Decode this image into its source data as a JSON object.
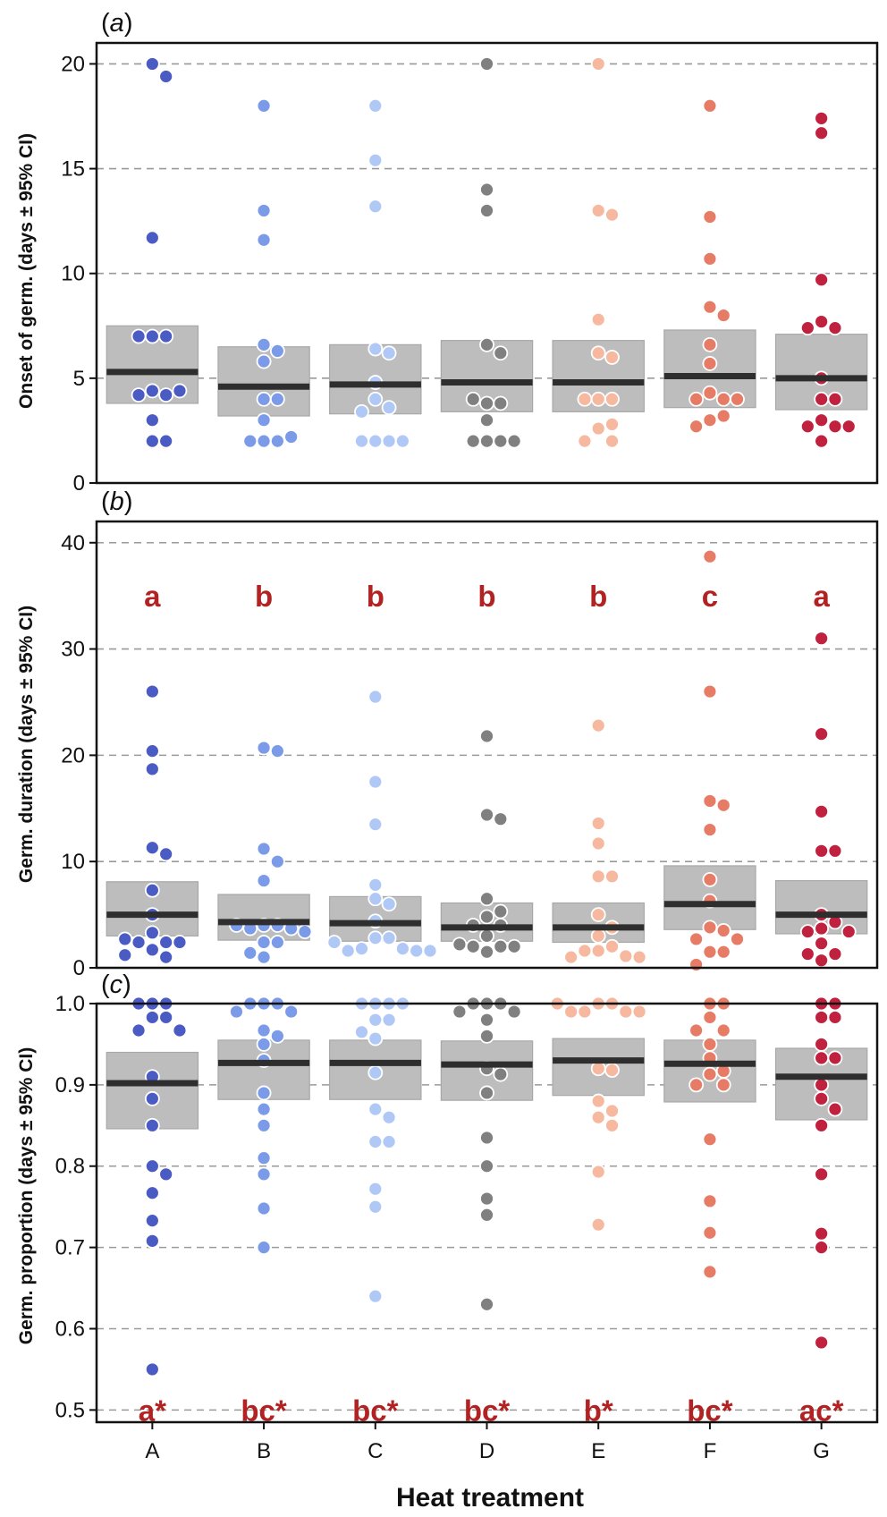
{
  "figure": {
    "x_title": "Heat treatment",
    "categories": [
      "A",
      "B",
      "C",
      "D",
      "E",
      "F",
      "G"
    ],
    "colors": {
      "A": "#4a5bc4",
      "B": "#7b9be8",
      "C": "#b0c8f6",
      "D": "#808080",
      "E": "#f6b9a0",
      "F": "#e77c66",
      "G": "#c0213e",
      "letters": "#b22222",
      "ci": "#bdbdbd",
      "mean": "#2e2e2e"
    }
  },
  "chart_data": [
    {
      "type": "scatter",
      "panel": "(a)",
      "panel_prefix": "(",
      "panel_letter": "a",
      "panel_suffix": ")",
      "ylabel": "Onset of germ. (days ± 95% CI)",
      "ylim": [
        0,
        21
      ],
      "yticks": [
        0,
        5,
        10,
        15,
        20
      ],
      "ytick_labels": [
        "0",
        "5",
        "10",
        "15",
        "20"
      ],
      "grid_y": [
        5,
        10,
        15,
        20
      ],
      "categories": [
        "A",
        "B",
        "C",
        "D",
        "E",
        "F",
        "G"
      ],
      "means": [
        5.3,
        4.6,
        4.7,
        4.8,
        4.8,
        5.1,
        5.0
      ],
      "ci_low": [
        3.8,
        3.2,
        3.3,
        3.4,
        3.4,
        3.6,
        3.5
      ],
      "ci_high": [
        7.5,
        6.5,
        6.6,
        6.8,
        6.8,
        7.3,
        7.1
      ],
      "letters": [],
      "points": [
        [
          20,
          19.4,
          11.7,
          7,
          7,
          7,
          4.4,
          4.2,
          4.2,
          4.4,
          3.0,
          2.0,
          2.0
        ],
        [
          18,
          13,
          11.6,
          6.6,
          6.3,
          5.8,
          4.0,
          4.0,
          3.0,
          2.0,
          2.0,
          2.0,
          2.2
        ],
        [
          18,
          15.4,
          13.2,
          6.4,
          6.2,
          4.8,
          4.0,
          3.6,
          3.4,
          2.0,
          2.0,
          2.0,
          2.0
        ],
        [
          20,
          14,
          13,
          6.6,
          6.2,
          3.8,
          3.8,
          4.0,
          3.0,
          2.0,
          2.0,
          2.0,
          2.0
        ],
        [
          20,
          13,
          12.8,
          7.8,
          6.2,
          6.0,
          4.0,
          4.0,
          4.0,
          2.6,
          2.8,
          2.0,
          2.0
        ],
        [
          18,
          12.7,
          10.7,
          8.4,
          8.0,
          6.6,
          5.7,
          4.3,
          4.0,
          4.0,
          4.0,
          3.0,
          3.2,
          2.7
        ],
        [
          17.4,
          16.7,
          9.7,
          7.7,
          7.4,
          7.4,
          5.0,
          4.0,
          4.0,
          3.0,
          2.7,
          2.7,
          2.7,
          2.0
        ]
      ]
    },
    {
      "type": "scatter",
      "panel": "(b)",
      "panel_prefix": "(",
      "panel_letter": "b",
      "panel_suffix": ")",
      "ylabel": "Germ. duration (days ± 95% CI)",
      "ylim": [
        0,
        42
      ],
      "yticks": [
        0,
        10,
        20,
        30,
        40
      ],
      "ytick_labels": [
        "0",
        "10",
        "20",
        "30",
        "40"
      ],
      "grid_y": [
        10,
        20,
        30,
        40
      ],
      "categories": [
        "A",
        "B",
        "C",
        "D",
        "E",
        "F",
        "G"
      ],
      "means": [
        5.0,
        4.3,
        4.2,
        3.8,
        3.8,
        6.0,
        5.0
      ],
      "ci_low": [
        3.0,
        2.6,
        2.5,
        2.5,
        2.4,
        3.6,
        3.2
      ],
      "ci_high": [
        8.1,
        6.9,
        6.7,
        6.1,
        6.1,
        9.6,
        8.2
      ],
      "letters": [
        "a",
        "b",
        "b",
        "b",
        "b",
        "c",
        "a"
      ],
      "letter_y": 35,
      "points": [
        [
          26,
          20.4,
          18.7,
          11.3,
          10.7,
          7.3,
          5.0,
          3.3,
          2.4,
          2.4,
          2.4,
          2.7,
          1.7,
          1.2,
          1.0
        ],
        [
          20.7,
          20.4,
          11.2,
          10,
          8.2,
          4.0,
          4.0,
          3.7,
          3.7,
          4.0,
          3.4,
          2.4,
          2.4,
          1.4,
          1.0
        ],
        [
          25.5,
          17.5,
          13.5,
          7.8,
          6.5,
          6.0,
          4.4,
          2.8,
          2.8,
          1.8,
          1.8,
          1.6,
          1.6,
          2.4,
          1.6
        ],
        [
          21.8,
          14.4,
          14,
          6.5,
          5.3,
          4.8,
          4.0,
          4.0,
          3.0,
          2.0,
          2.0,
          1.5,
          2.0,
          2.2
        ],
        [
          22.8,
          13.6,
          11.7,
          8.6,
          8.6,
          5.0,
          3.8,
          3.0,
          2.0,
          1.6,
          1.6,
          1.1,
          1.0,
          1.0
        ],
        [
          38.7,
          26,
          15.7,
          15.3,
          13,
          8.3,
          6.3,
          3.8,
          3.5,
          2.7,
          2.7,
          1.5,
          1.5,
          0.3
        ],
        [
          31,
          22,
          14.7,
          11,
          11,
          5.0,
          4.3,
          3.7,
          3.4,
          3.4,
          2.3,
          1.3,
          1.3,
          0.7
        ]
      ]
    },
    {
      "type": "scatter",
      "panel": "(c)",
      "panel_prefix": "(",
      "panel_letter": "c",
      "panel_suffix": ")",
      "ylabel": "Germ. proportion (days ± 95% CI)",
      "ylim": [
        0.485,
        1.0
      ],
      "yticks": [
        0.5,
        0.6,
        0.7,
        0.8,
        0.9,
        1.0
      ],
      "ytick_labels": [
        "0.5",
        "0.6",
        "0.7",
        "0.8",
        "0.9",
        "1.0"
      ],
      "grid_y": [
        0.5,
        0.6,
        0.7,
        0.8,
        0.9
      ],
      "categories": [
        "A",
        "B",
        "C",
        "D",
        "E",
        "F",
        "G"
      ],
      "means": [
        0.902,
        0.927,
        0.927,
        0.925,
        0.93,
        0.926,
        0.91
      ],
      "ci_low": [
        0.846,
        0.882,
        0.882,
        0.881,
        0.887,
        0.879,
        0.857
      ],
      "ci_high": [
        0.94,
        0.955,
        0.955,
        0.954,
        0.957,
        0.955,
        0.945
      ],
      "letters": [
        "a*",
        "bc*",
        "bc*",
        "bc*",
        "b*",
        "bc*",
        "ac*"
      ],
      "letter_y": 0.5,
      "points": [
        [
          1.0,
          1.0,
          1.0,
          0.983,
          0.983,
          0.967,
          0.967,
          0.91,
          0.883,
          0.85,
          0.8,
          0.79,
          0.767,
          0.733,
          0.708,
          0.55
        ],
        [
          1.0,
          1.0,
          1.0,
          0.99,
          0.99,
          0.967,
          0.96,
          0.95,
          0.93,
          0.89,
          0.87,
          0.85,
          0.81,
          0.79,
          0.748,
          0.7
        ],
        [
          1.0,
          1.0,
          1.0,
          1.0,
          0.98,
          0.98,
          0.965,
          0.957,
          0.915,
          0.87,
          0.86,
          0.83,
          0.83,
          0.772,
          0.75,
          0.64
        ],
        [
          1.0,
          1.0,
          1.0,
          0.99,
          0.99,
          0.98,
          0.96,
          0.92,
          0.913,
          0.89,
          0.835,
          0.8,
          0.76,
          0.74,
          0.63
        ],
        [
          1.0,
          1.0,
          0.99,
          0.99,
          0.99,
          0.99,
          1.0,
          0.92,
          0.918,
          0.88,
          0.868,
          0.86,
          0.85,
          0.793,
          0.728
        ],
        [
          1.0,
          1.0,
          0.983,
          0.967,
          0.967,
          0.95,
          0.933,
          0.917,
          0.913,
          0.9,
          0.9,
          0.833,
          0.757,
          0.718,
          0.67
        ],
        [
          1.0,
          1.0,
          0.983,
          0.983,
          0.95,
          0.933,
          0.933,
          0.9,
          0.883,
          0.87,
          0.85,
          0.79,
          0.717,
          0.7,
          0.583
        ]
      ]
    }
  ]
}
